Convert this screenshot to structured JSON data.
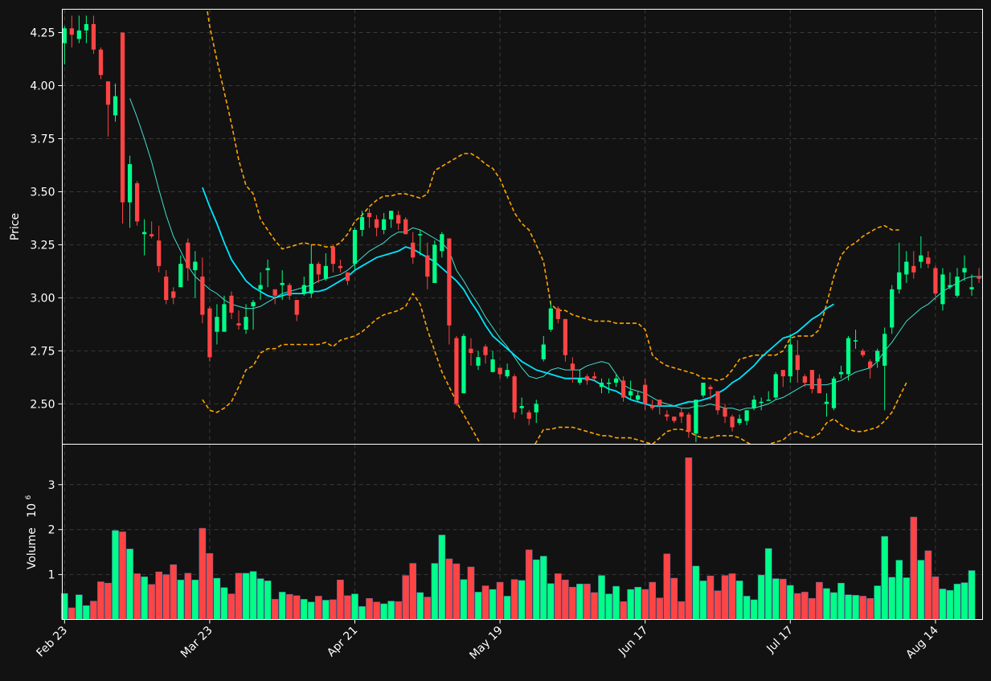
{
  "colors": {
    "background": "#121212",
    "up": "#00ff88",
    "down": "#ff4444",
    "ma_fast": "#40e0d0",
    "ma_slow": "#00e5ff",
    "bollinger": "#ffa500",
    "grid": "#3a3a3a",
    "axis": "#ffffff",
    "text": "#ffffff"
  },
  "chart_data": {
    "type": "candlestick",
    "ylabel": "Price",
    "volume_ylabel": "Volume",
    "volume_exponent": "10",
    "volume_exponent_power": "6",
    "price_ylim": [
      2.31,
      4.36
    ],
    "volume_ylim": [
      0,
      3.9
    ],
    "price_ticks": [
      "2.50",
      "2.75",
      "3.00",
      "3.25",
      "3.50",
      "3.75",
      "4.00",
      "4.25"
    ],
    "volume_ticks": [
      "1",
      "2",
      "3"
    ],
    "x_ticks": [
      {
        "label": "Feb 23",
        "index": 0
      },
      {
        "label": "Mar 23",
        "index": 20
      },
      {
        "label": "Apr 21",
        "index": 40
      },
      {
        "label": "May 19",
        "index": 60
      },
      {
        "label": "Jun 17",
        "index": 80
      },
      {
        "label": "Jul 17",
        "index": 100
      },
      {
        "label": "Aug 14",
        "index": 120
      }
    ],
    "candles": [
      [
        4.2,
        4.27,
        4.28,
        4.1
      ],
      [
        4.27,
        4.24,
        4.33,
        4.18
      ],
      [
        4.22,
        4.26,
        4.33,
        4.2
      ],
      [
        4.26,
        4.29,
        4.33,
        4.2
      ],
      [
        4.29,
        4.17,
        4.33,
        4.15
      ],
      [
        4.17,
        4.05,
        4.18,
        4.03
      ],
      [
        4.02,
        3.91,
        4.01,
        3.76
      ],
      [
        3.86,
        3.95,
        4.01,
        3.83
      ],
      [
        4.25,
        3.45,
        4.25,
        3.35
      ],
      [
        3.45,
        3.63,
        3.67,
        3.33
      ],
      [
        3.54,
        3.36,
        3.55,
        3.34
      ],
      [
        3.3,
        3.31,
        3.37,
        3.2
      ],
      [
        3.3,
        3.29,
        3.36,
        3.28
      ],
      [
        3.27,
        3.15,
        3.34,
        3.12
      ],
      [
        3.1,
        2.99,
        3.13,
        2.97
      ],
      [
        3.03,
        3.0,
        3.05,
        2.97
      ],
      [
        3.05,
        3.16,
        3.2,
        3.06
      ],
      [
        3.26,
        3.14,
        3.28,
        3.08
      ],
      [
        3.13,
        3.17,
        3.22,
        3.0
      ],
      [
        3.1,
        2.92,
        3.19,
        2.88
      ],
      [
        2.95,
        2.72,
        2.96,
        2.7
      ],
      [
        2.84,
        2.91,
        2.97,
        2.78
      ],
      [
        2.84,
        2.97,
        3.01,
        2.84
      ],
      [
        3.01,
        2.93,
        3.03,
        2.9
      ],
      [
        2.88,
        2.87,
        2.94,
        2.85
      ],
      [
        2.85,
        2.91,
        2.97,
        2.83
      ],
      [
        2.96,
        2.98,
        2.99,
        2.85
      ],
      [
        3.04,
        3.06,
        3.12,
        2.99
      ],
      [
        3.13,
        3.14,
        3.18,
        3.05
      ],
      [
        3.04,
        3.01,
        3.04,
        2.97
      ],
      [
        3.06,
        3.07,
        3.13,
        2.99
      ],
      [
        3.06,
        3.01,
        3.07,
        2.99
      ],
      [
        2.99,
        2.92,
        2.99,
        2.89
      ],
      [
        3.02,
        3.06,
        3.1,
        3.01
      ],
      [
        3.02,
        3.16,
        3.25,
        3.0
      ],
      [
        3.16,
        3.11,
        3.17,
        3.07
      ],
      [
        3.09,
        3.15,
        3.21,
        3.08
      ],
      [
        3.24,
        3.16,
        3.25,
        3.12
      ],
      [
        3.15,
        3.14,
        3.18,
        3.12
      ],
      [
        3.12,
        3.08,
        3.11,
        3.06
      ],
      [
        3.16,
        3.32,
        3.33,
        3.13
      ],
      [
        3.32,
        3.38,
        3.41,
        3.29
      ],
      [
        3.4,
        3.38,
        3.42,
        3.33
      ],
      [
        3.37,
        3.33,
        3.39,
        3.29
      ],
      [
        3.32,
        3.37,
        3.4,
        3.3
      ],
      [
        3.37,
        3.41,
        3.41,
        3.33
      ],
      [
        3.39,
        3.35,
        3.41,
        3.32
      ],
      [
        3.37,
        3.3,
        3.38,
        3.3
      ],
      [
        3.26,
        3.19,
        3.31,
        3.16
      ],
      [
        3.3,
        3.3,
        3.32,
        3.2
      ],
      [
        3.2,
        3.1,
        3.26,
        3.04
      ],
      [
        3.07,
        3.25,
        3.27,
        3.07
      ],
      [
        3.22,
        3.3,
        3.31,
        3.19
      ],
      [
        3.28,
        2.87,
        3.24,
        2.78
      ],
      [
        2.81,
        2.5,
        2.82,
        2.49
      ],
      [
        2.55,
        2.82,
        2.83,
        2.55
      ],
      [
        2.76,
        2.74,
        2.81,
        2.68
      ],
      [
        2.68,
        2.72,
        2.75,
        2.66
      ],
      [
        2.77,
        2.73,
        2.78,
        2.69
      ],
      [
        2.65,
        2.71,
        2.75,
        2.65
      ],
      [
        2.67,
        2.64,
        2.67,
        2.62
      ],
      [
        2.63,
        2.66,
        2.69,
        2.62
      ],
      [
        2.63,
        2.46,
        2.64,
        2.43
      ],
      [
        2.48,
        2.49,
        2.53,
        2.45
      ],
      [
        2.46,
        2.43,
        2.47,
        2.4
      ],
      [
        2.46,
        2.5,
        2.52,
        2.41
      ],
      [
        2.71,
        2.78,
        2.82,
        2.7
      ],
      [
        2.85,
        2.95,
        2.98,
        2.84
      ],
      [
        2.95,
        2.9,
        2.96,
        2.88
      ],
      [
        2.9,
        2.73,
        2.9,
        2.7
      ],
      [
        2.69,
        2.66,
        2.72,
        2.6
      ],
      [
        2.6,
        2.62,
        2.66,
        2.59
      ],
      [
        2.63,
        2.61,
        2.64,
        2.59
      ],
      [
        2.63,
        2.62,
        2.65,
        2.61
      ],
      [
        2.58,
        2.6,
        2.62,
        2.55
      ],
      [
        2.6,
        2.6,
        2.62,
        2.55
      ],
      [
        2.6,
        2.62,
        2.64,
        2.58
      ],
      [
        2.61,
        2.53,
        2.63,
        2.51
      ],
      [
        2.54,
        2.56,
        2.61,
        2.52
      ],
      [
        2.52,
        2.54,
        2.56,
        2.51
      ],
      [
        2.59,
        2.5,
        2.62,
        2.47
      ],
      [
        2.49,
        2.48,
        2.52,
        2.47
      ],
      [
        2.52,
        2.49,
        2.52,
        2.45
      ],
      [
        2.45,
        2.44,
        2.47,
        2.42
      ],
      [
        2.44,
        2.42,
        2.43,
        2.41
      ],
      [
        2.46,
        2.44,
        2.48,
        2.41
      ],
      [
        2.45,
        2.37,
        2.46,
        2.34
      ],
      [
        2.36,
        2.52,
        2.52,
        2.32
      ],
      [
        2.54,
        2.6,
        2.6,
        2.53
      ],
      [
        2.58,
        2.57,
        2.59,
        2.52
      ],
      [
        2.56,
        2.47,
        2.53,
        2.45
      ],
      [
        2.48,
        2.44,
        2.5,
        2.41
      ],
      [
        2.44,
        2.39,
        2.45,
        2.37
      ],
      [
        2.41,
        2.43,
        2.45,
        2.4
      ],
      [
        2.42,
        2.47,
        2.47,
        2.4
      ],
      [
        2.48,
        2.52,
        2.54,
        2.47
      ],
      [
        2.51,
        2.51,
        2.53,
        2.47
      ],
      [
        2.52,
        2.52,
        2.56,
        2.52
      ],
      [
        2.53,
        2.64,
        2.65,
        2.52
      ],
      [
        2.66,
        2.63,
        2.66,
        2.58
      ],
      [
        2.63,
        2.78,
        2.83,
        2.6
      ],
      [
        2.73,
        2.66,
        2.8,
        2.6
      ],
      [
        2.63,
        2.6,
        2.64,
        2.58
      ],
      [
        2.66,
        2.57,
        2.65,
        2.55
      ],
      [
        2.62,
        2.55,
        2.64,
        2.55
      ],
      [
        2.5,
        2.51,
        2.55,
        2.44
      ],
      [
        2.48,
        2.62,
        2.63,
        2.47
      ],
      [
        2.64,
        2.65,
        2.68,
        2.62
      ],
      [
        2.64,
        2.81,
        2.82,
        2.61
      ],
      [
        2.8,
        2.8,
        2.85,
        2.76
      ],
      [
        2.75,
        2.73,
        2.76,
        2.72
      ],
      [
        2.7,
        2.67,
        2.71,
        2.62
      ],
      [
        2.7,
        2.75,
        2.76,
        2.67
      ],
      [
        2.68,
        2.83,
        2.86,
        2.47
      ],
      [
        2.86,
        3.04,
        3.06,
        2.83
      ],
      [
        3.04,
        3.12,
        3.26,
        3.02
      ],
      [
        3.11,
        3.17,
        3.22,
        3.07
      ],
      [
        3.15,
        3.12,
        3.22,
        3.09
      ],
      [
        3.17,
        3.2,
        3.29,
        3.14
      ],
      [
        3.19,
        3.16,
        3.22,
        3.14
      ],
      [
        3.14,
        3.02,
        3.15,
        2.99
      ],
      [
        2.97,
        3.11,
        3.14,
        2.94
      ],
      [
        3.05,
        3.06,
        3.12,
        3.04
      ],
      [
        3.01,
        3.1,
        3.14,
        3.0
      ],
      [
        3.12,
        3.14,
        3.2,
        3.08
      ],
      [
        3.04,
        3.05,
        3.11,
        3.01
      ],
      [
        3.1,
        3.09,
        3.14,
        3.07
      ]
    ],
    "volumes": [
      0.58,
      0.26,
      0.55,
      0.31,
      0.41,
      0.84,
      0.81,
      1.98,
      1.95,
      1.57,
      1.02,
      0.95,
      0.78,
      1.06,
      1.0,
      1.22,
      0.88,
      1.03,
      0.88,
      2.03,
      1.47,
      0.92,
      0.71,
      0.57,
      1.03,
      1.03,
      1.07,
      0.91,
      0.86,
      0.45,
      0.61,
      0.56,
      0.53,
      0.45,
      0.39,
      0.52,
      0.43,
      0.44,
      0.88,
      0.53,
      0.57,
      0.29,
      0.47,
      0.39,
      0.35,
      0.41,
      0.4,
      0.98,
      1.25,
      0.6,
      0.5,
      1.25,
      1.88,
      1.35,
      1.24,
      0.89,
      1.17,
      0.61,
      0.75,
      0.67,
      0.83,
      0.52,
      0.89,
      0.87,
      1.55,
      1.33,
      1.41,
      0.8,
      1.02,
      0.88,
      0.72,
      0.79,
      0.79,
      0.6,
      0.98,
      0.57,
      0.74,
      0.4,
      0.67,
      0.72,
      0.67,
      0.83,
      0.48,
      1.46,
      0.92,
      0.4,
      3.6,
      1.19,
      0.86,
      0.97,
      0.64,
      0.98,
      1.02,
      0.86,
      0.52,
      0.44,
      0.99,
      1.58,
      0.91,
      0.9,
      0.76,
      0.58,
      0.61,
      0.47,
      0.83,
      0.69,
      0.6,
      0.81,
      0.55,
      0.54,
      0.52,
      0.47,
      0.75,
      1.85,
      0.94,
      1.32,
      0.93,
      2.28,
      1.32,
      1.53,
      0.95,
      0.68,
      0.65,
      0.79,
      0.82,
      1.09
    ],
    "ma_fast": [
      null,
      null,
      null,
      null,
      null,
      null,
      null,
      null,
      null,
      3.94,
      3.85,
      3.75,
      3.64,
      3.51,
      3.39,
      3.29,
      3.22,
      3.15,
      3.1,
      3.07,
      3.04,
      3.02,
      2.99,
      2.97,
      2.96,
      2.95,
      2.95,
      2.96,
      2.98,
      3.0,
      3.02,
      3.03,
      3.04,
      3.05,
      3.06,
      3.08,
      3.09,
      3.1,
      3.11,
      3.13,
      3.16,
      3.19,
      3.22,
      3.24,
      3.26,
      3.29,
      3.31,
      3.31,
      3.33,
      3.32,
      3.3,
      3.28,
      3.26,
      3.22,
      3.13,
      3.08,
      3.02,
      2.97,
      2.91,
      2.86,
      2.81,
      2.77,
      2.72,
      2.67,
      2.63,
      2.62,
      2.63,
      2.66,
      2.67,
      2.66,
      2.66,
      2.66,
      2.68,
      2.69,
      2.7,
      2.69,
      2.64,
      2.59,
      2.57,
      2.56,
      2.55,
      2.53,
      2.51,
      2.5,
      2.49,
      2.48,
      2.48,
      2.49,
      2.49,
      2.5,
      2.49,
      2.48,
      2.48,
      2.47,
      2.48,
      2.48,
      2.49,
      2.5,
      2.52,
      2.53,
      2.55,
      2.57,
      2.59,
      2.59,
      2.59,
      2.59,
      2.6,
      2.61,
      2.63,
      2.65,
      2.66,
      2.67,
      2.7,
      2.75,
      2.79,
      2.84,
      2.89,
      2.92,
      2.95,
      2.97,
      3.0,
      3.03,
      3.05,
      3.07,
      3.09,
      3.1,
      3.1,
      3.1
    ],
    "ma_slow": [
      null,
      null,
      null,
      null,
      null,
      null,
      null,
      null,
      null,
      null,
      null,
      null,
      null,
      null,
      null,
      null,
      null,
      null,
      null,
      3.52,
      3.43,
      3.35,
      3.26,
      3.18,
      3.13,
      3.08,
      3.05,
      3.03,
      3.01,
      3.0,
      3.01,
      3.02,
      3.02,
      3.02,
      3.03,
      3.03,
      3.04,
      3.06,
      3.08,
      3.1,
      3.13,
      3.15,
      3.17,
      3.19,
      3.2,
      3.21,
      3.22,
      3.24,
      3.23,
      3.21,
      3.19,
      3.17,
      3.14,
      3.11,
      3.08,
      3.04,
      2.98,
      2.93,
      2.87,
      2.82,
      2.79,
      2.76,
      2.73,
      2.7,
      2.68,
      2.66,
      2.65,
      2.64,
      2.63,
      2.62,
      2.62,
      2.62,
      2.62,
      2.61,
      2.59,
      2.57,
      2.56,
      2.54,
      2.52,
      2.51,
      2.5,
      2.49,
      2.49,
      2.49,
      2.49,
      2.5,
      2.51,
      2.51,
      2.52,
      2.53,
      2.55,
      2.57,
      2.6,
      2.62,
      2.65,
      2.68,
      2.72,
      2.75,
      2.78,
      2.81,
      2.82,
      2.84,
      2.87,
      2.9,
      2.92,
      2.95,
      2.97
    ],
    "bb_upper": [
      null,
      null,
      null,
      null,
      null,
      null,
      null,
      null,
      null,
      null,
      null,
      null,
      null,
      null,
      null,
      null,
      null,
      null,
      null,
      4.5,
      4.28,
      4.12,
      3.97,
      3.82,
      3.65,
      3.53,
      3.49,
      3.37,
      3.32,
      3.27,
      3.23,
      3.24,
      3.25,
      3.26,
      3.25,
      3.25,
      3.24,
      3.24,
      3.26,
      3.3,
      3.36,
      3.39,
      3.43,
      3.46,
      3.48,
      3.48,
      3.49,
      3.49,
      3.48,
      3.47,
      3.49,
      3.6,
      3.62,
      3.64,
      3.66,
      3.68,
      3.68,
      3.66,
      3.63,
      3.61,
      3.56,
      3.48,
      3.4,
      3.35,
      3.32,
      3.25,
      3.17,
      2.97,
      2.94,
      2.94,
      2.92,
      2.91,
      2.9,
      2.89,
      2.89,
      2.89,
      2.88,
      2.88,
      2.88,
      2.88,
      2.85,
      2.73,
      2.7,
      2.68,
      2.67,
      2.66,
      2.65,
      2.64,
      2.62,
      2.62,
      2.61,
      2.62,
      2.66,
      2.71,
      2.72,
      2.73,
      2.73,
      2.73,
      2.73,
      2.75,
      2.81,
      2.82,
      2.82,
      2.82,
      2.85,
      2.97,
      3.1,
      3.2,
      3.24,
      3.26,
      3.29,
      3.31,
      3.33,
      3.34,
      3.32,
      3.32
    ],
    "bb_lower": [
      null,
      null,
      null,
      null,
      null,
      null,
      null,
      null,
      null,
      null,
      null,
      null,
      null,
      null,
      null,
      null,
      null,
      null,
      null,
      2.52,
      2.47,
      2.46,
      2.48,
      2.51,
      2.58,
      2.66,
      2.68,
      2.74,
      2.76,
      2.76,
      2.78,
      2.78,
      2.78,
      2.78,
      2.78,
      2.78,
      2.79,
      2.77,
      2.8,
      2.81,
      2.82,
      2.84,
      2.87,
      2.9,
      2.92,
      2.93,
      2.94,
      2.96,
      3.02,
      2.97,
      2.85,
      2.75,
      2.65,
      2.58,
      2.51,
      2.45,
      2.39,
      2.33,
      2.25,
      2.16,
      2.11,
      2.06,
      2.08,
      2.18,
      2.26,
      2.32,
      2.38,
      2.38,
      2.39,
      2.39,
      2.39,
      2.38,
      2.37,
      2.36,
      2.35,
      2.35,
      2.34,
      2.34,
      2.34,
      2.33,
      2.32,
      2.31,
      2.34,
      2.37,
      2.38,
      2.38,
      2.37,
      2.35,
      2.34,
      2.34,
      2.35,
      2.35,
      2.35,
      2.34,
      2.32,
      2.3,
      2.3,
      2.31,
      2.32,
      2.33,
      2.36,
      2.37,
      2.35,
      2.34,
      2.36,
      2.41,
      2.43,
      2.4,
      2.38,
      2.37,
      2.37,
      2.38,
      2.39,
      2.42,
      2.46,
      2.53,
      2.6
    ],
    "grid": true
  }
}
